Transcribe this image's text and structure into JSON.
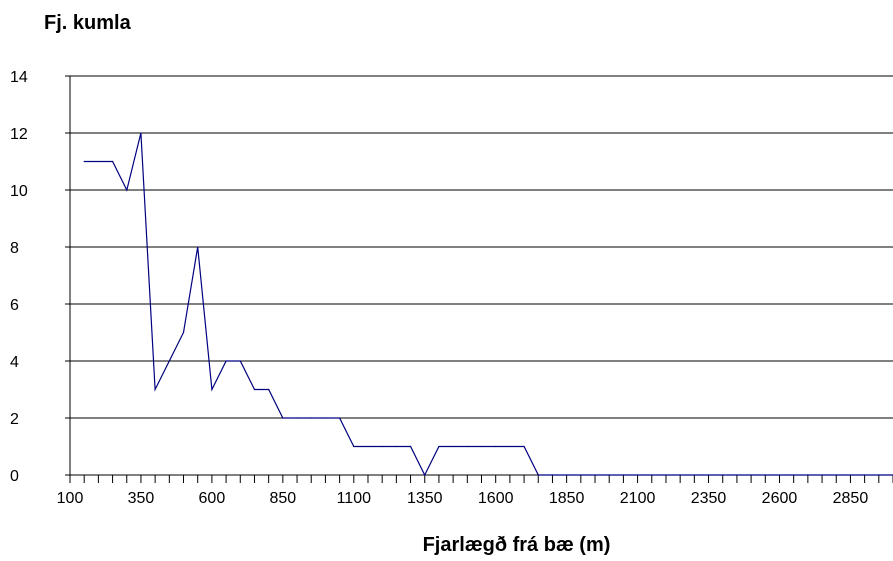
{
  "chart_data": {
    "type": "line",
    "title": "",
    "ylabel": "Fj. kumla",
    "xlabel": "Fjarlægð frá bæ  (m)",
    "x_ticks": [
      100,
      350,
      600,
      850,
      1100,
      1350,
      1600,
      1850,
      2100,
      2350,
      2600,
      2850
    ],
    "y_ticks": [
      0,
      2,
      4,
      6,
      8,
      10,
      12,
      14
    ],
    "xlim": [
      100,
      3000
    ],
    "ylim": [
      0,
      14
    ],
    "grid": "horizontal",
    "line_color": "#000080",
    "series": [
      {
        "x": [
          150,
          250,
          300,
          350,
          400,
          450,
          500,
          550,
          600,
          650,
          700,
          750,
          800,
          850,
          900,
          950,
          1000,
          1050,
          1100,
          1150,
          1200,
          1250,
          1300,
          1350,
          1400,
          1450,
          1500,
          1550,
          1600,
          1650,
          1700,
          1750,
          1800,
          1850,
          1900,
          1950,
          2000,
          2050,
          2100,
          2150,
          2200,
          2250,
          2300,
          2350,
          2400,
          2450,
          2500,
          2550,
          2600,
          2650,
          2700,
          2750,
          2800,
          2850,
          2900,
          2950,
          3000
        ],
        "values": [
          11,
          11,
          10,
          12,
          3,
          4,
          5,
          8,
          3,
          4,
          4,
          3,
          3,
          2,
          2,
          2,
          2,
          2,
          1,
          1,
          1,
          1,
          1,
          0,
          1,
          1,
          1,
          1,
          1,
          1,
          1,
          0,
          0,
          0,
          0,
          0,
          0,
          0,
          0,
          0,
          0,
          0,
          0,
          0,
          0,
          0,
          0,
          0,
          0,
          0,
          0,
          0,
          0,
          0,
          0,
          0,
          0
        ]
      }
    ]
  }
}
